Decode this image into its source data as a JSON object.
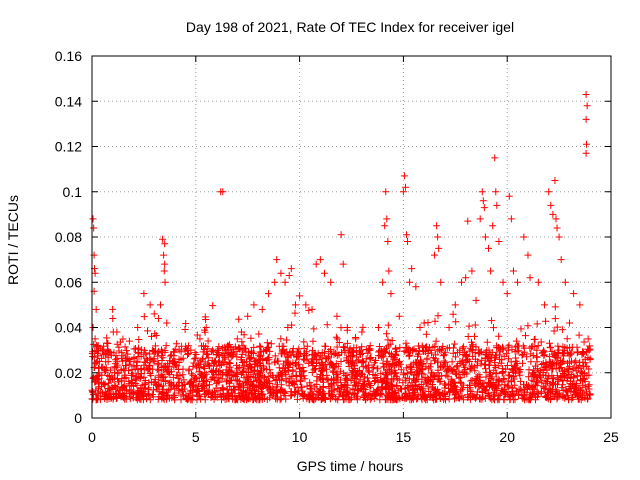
{
  "chart_data": {
    "type": "scatter",
    "title": "Day 198 of 2021, Rate Of TEC Index for receiver igel",
    "xlabel": "GPS time / hours",
    "ylabel": "ROTI / TECUs",
    "xlim": [
      0,
      25
    ],
    "ylim": [
      0,
      0.16
    ],
    "x_ticks": [
      0,
      5,
      10,
      15,
      20,
      25
    ],
    "x_tick_labels": [
      "0",
      "5",
      "10",
      "15",
      "20",
      "25"
    ],
    "y_ticks": [
      0,
      0.02,
      0.04,
      0.06,
      0.08,
      0.1,
      0.12,
      0.14,
      0.16
    ],
    "y_tick_labels": [
      "0",
      "0.02",
      "0.04",
      "0.06",
      "0.08",
      "0.1",
      "0.12",
      "0.14",
      "0.16"
    ],
    "grid": true,
    "marker": "+",
    "color": "#ff0000",
    "series": [
      {
        "name": "ROTI",
        "points": [
          [
            0.05,
            0.088
          ],
          [
            0.08,
            0.084
          ],
          [
            0.1,
            0.072
          ],
          [
            0.12,
            0.066
          ],
          [
            0.15,
            0.064
          ],
          [
            0.1,
            0.056
          ],
          [
            0.2,
            0.048
          ],
          [
            0.05,
            0.04
          ],
          [
            0.15,
            0.035
          ],
          [
            0.3,
            0.032
          ],
          [
            0.5,
            0.03
          ],
          [
            1.0,
            0.044
          ],
          [
            1.2,
            0.038
          ],
          [
            1.8,
            0.034
          ],
          [
            2.2,
            0.04
          ],
          [
            2.5,
            0.055
          ],
          [
            2.8,
            0.05
          ],
          [
            3.0,
            0.046
          ],
          [
            3.2,
            0.044
          ],
          [
            3.4,
            0.079
          ],
          [
            3.5,
            0.077
          ],
          [
            3.45,
            0.072
          ],
          [
            3.5,
            0.068
          ],
          [
            3.48,
            0.065
          ],
          [
            3.52,
            0.06
          ],
          [
            3.3,
            0.05
          ],
          [
            3.6,
            0.042
          ],
          [
            4.2,
            0.03
          ],
          [
            4.6,
            0.028
          ],
          [
            5.2,
            0.035
          ],
          [
            5.5,
            0.04
          ],
          [
            5.8,
            0.03
          ],
          [
            6.1,
            0.028
          ],
          [
            6.2,
            0.1
          ],
          [
            6.3,
            0.1
          ],
          [
            6.5,
            0.03
          ],
          [
            6.8,
            0.028
          ],
          [
            7.0,
            0.035
          ],
          [
            7.2,
            0.038
          ],
          [
            7.5,
            0.045
          ],
          [
            7.8,
            0.05
          ],
          [
            8.2,
            0.048
          ],
          [
            8.5,
            0.055
          ],
          [
            8.8,
            0.06
          ],
          [
            8.9,
            0.07
          ],
          [
            9.1,
            0.064
          ],
          [
            9.3,
            0.06
          ],
          [
            9.5,
            0.063
          ],
          [
            9.6,
            0.066
          ],
          [
            9.8,
            0.05
          ],
          [
            10.0,
            0.054
          ],
          [
            10.3,
            0.05
          ],
          [
            10.6,
            0.048
          ],
          [
            10.8,
            0.068
          ],
          [
            11.0,
            0.07
          ],
          [
            11.2,
            0.064
          ],
          [
            11.5,
            0.06
          ],
          [
            11.8,
            0.045
          ],
          [
            12.0,
            0.081
          ],
          [
            12.1,
            0.068
          ],
          [
            12.3,
            0.04
          ],
          [
            12.7,
            0.035
          ],
          [
            13.0,
            0.038
          ],
          [
            13.4,
            0.032
          ],
          [
            13.8,
            0.04
          ],
          [
            14.0,
            0.06
          ],
          [
            14.1,
            0.085
          ],
          [
            14.15,
            0.1
          ],
          [
            14.2,
            0.088
          ],
          [
            14.25,
            0.078
          ],
          [
            14.3,
            0.065
          ],
          [
            14.4,
            0.055
          ],
          [
            14.8,
            0.045
          ],
          [
            15.0,
            0.1
          ],
          [
            15.05,
            0.107
          ],
          [
            15.1,
            0.102
          ],
          [
            15.15,
            0.081
          ],
          [
            15.2,
            0.078
          ],
          [
            15.3,
            0.06
          ],
          [
            15.4,
            0.066
          ],
          [
            15.6,
            0.058
          ],
          [
            15.8,
            0.04
          ],
          [
            16.0,
            0.042
          ],
          [
            16.2,
            0.03
          ],
          [
            16.5,
            0.072
          ],
          [
            16.6,
            0.085
          ],
          [
            16.65,
            0.08
          ],
          [
            16.7,
            0.075
          ],
          [
            16.8,
            0.06
          ],
          [
            17.2,
            0.04
          ],
          [
            17.5,
            0.05
          ],
          [
            17.8,
            0.06
          ],
          [
            18.0,
            0.062
          ],
          [
            18.1,
            0.087
          ],
          [
            18.3,
            0.065
          ],
          [
            18.5,
            0.052
          ],
          [
            18.7,
            0.088
          ],
          [
            18.8,
            0.1
          ],
          [
            18.85,
            0.096
          ],
          [
            18.9,
            0.093
          ],
          [
            18.95,
            0.08
          ],
          [
            19.1,
            0.075
          ],
          [
            19.2,
            0.065
          ],
          [
            19.3,
            0.085
          ],
          [
            19.4,
            0.115
          ],
          [
            19.45,
            0.1
          ],
          [
            19.5,
            0.094
          ],
          [
            19.6,
            0.078
          ],
          [
            19.8,
            0.06
          ],
          [
            20.0,
            0.055
          ],
          [
            20.1,
            0.098
          ],
          [
            20.2,
            0.088
          ],
          [
            20.3,
            0.065
          ],
          [
            20.5,
            0.06
          ],
          [
            20.8,
            0.08
          ],
          [
            21.0,
            0.072
          ],
          [
            21.1,
            0.062
          ],
          [
            21.5,
            0.06
          ],
          [
            21.8,
            0.05
          ],
          [
            22.0,
            0.1
          ],
          [
            22.1,
            0.094
          ],
          [
            22.2,
            0.09
          ],
          [
            22.3,
            0.105
          ],
          [
            22.35,
            0.088
          ],
          [
            22.4,
            0.084
          ],
          [
            22.5,
            0.08
          ],
          [
            22.6,
            0.07
          ],
          [
            22.8,
            0.06
          ],
          [
            23.0,
            0.042
          ],
          [
            23.2,
            0.055
          ],
          [
            23.5,
            0.05
          ],
          [
            23.8,
            0.143
          ],
          [
            23.85,
            0.138
          ],
          [
            23.8,
            0.132
          ],
          [
            23.82,
            0.121
          ],
          [
            23.8,
            0.117
          ],
          [
            23.9,
            0.035
          ],
          [
            23.95,
            0.03
          ]
        ],
        "dense_band": {
          "x_range": [
            0,
            24
          ],
          "baseline_roti": [
            0.008,
            0.032
          ],
          "note": "continuous dense cluster of samples across the full day between roughly 0.005 and 0.035 TECUs"
        }
      }
    ]
  }
}
